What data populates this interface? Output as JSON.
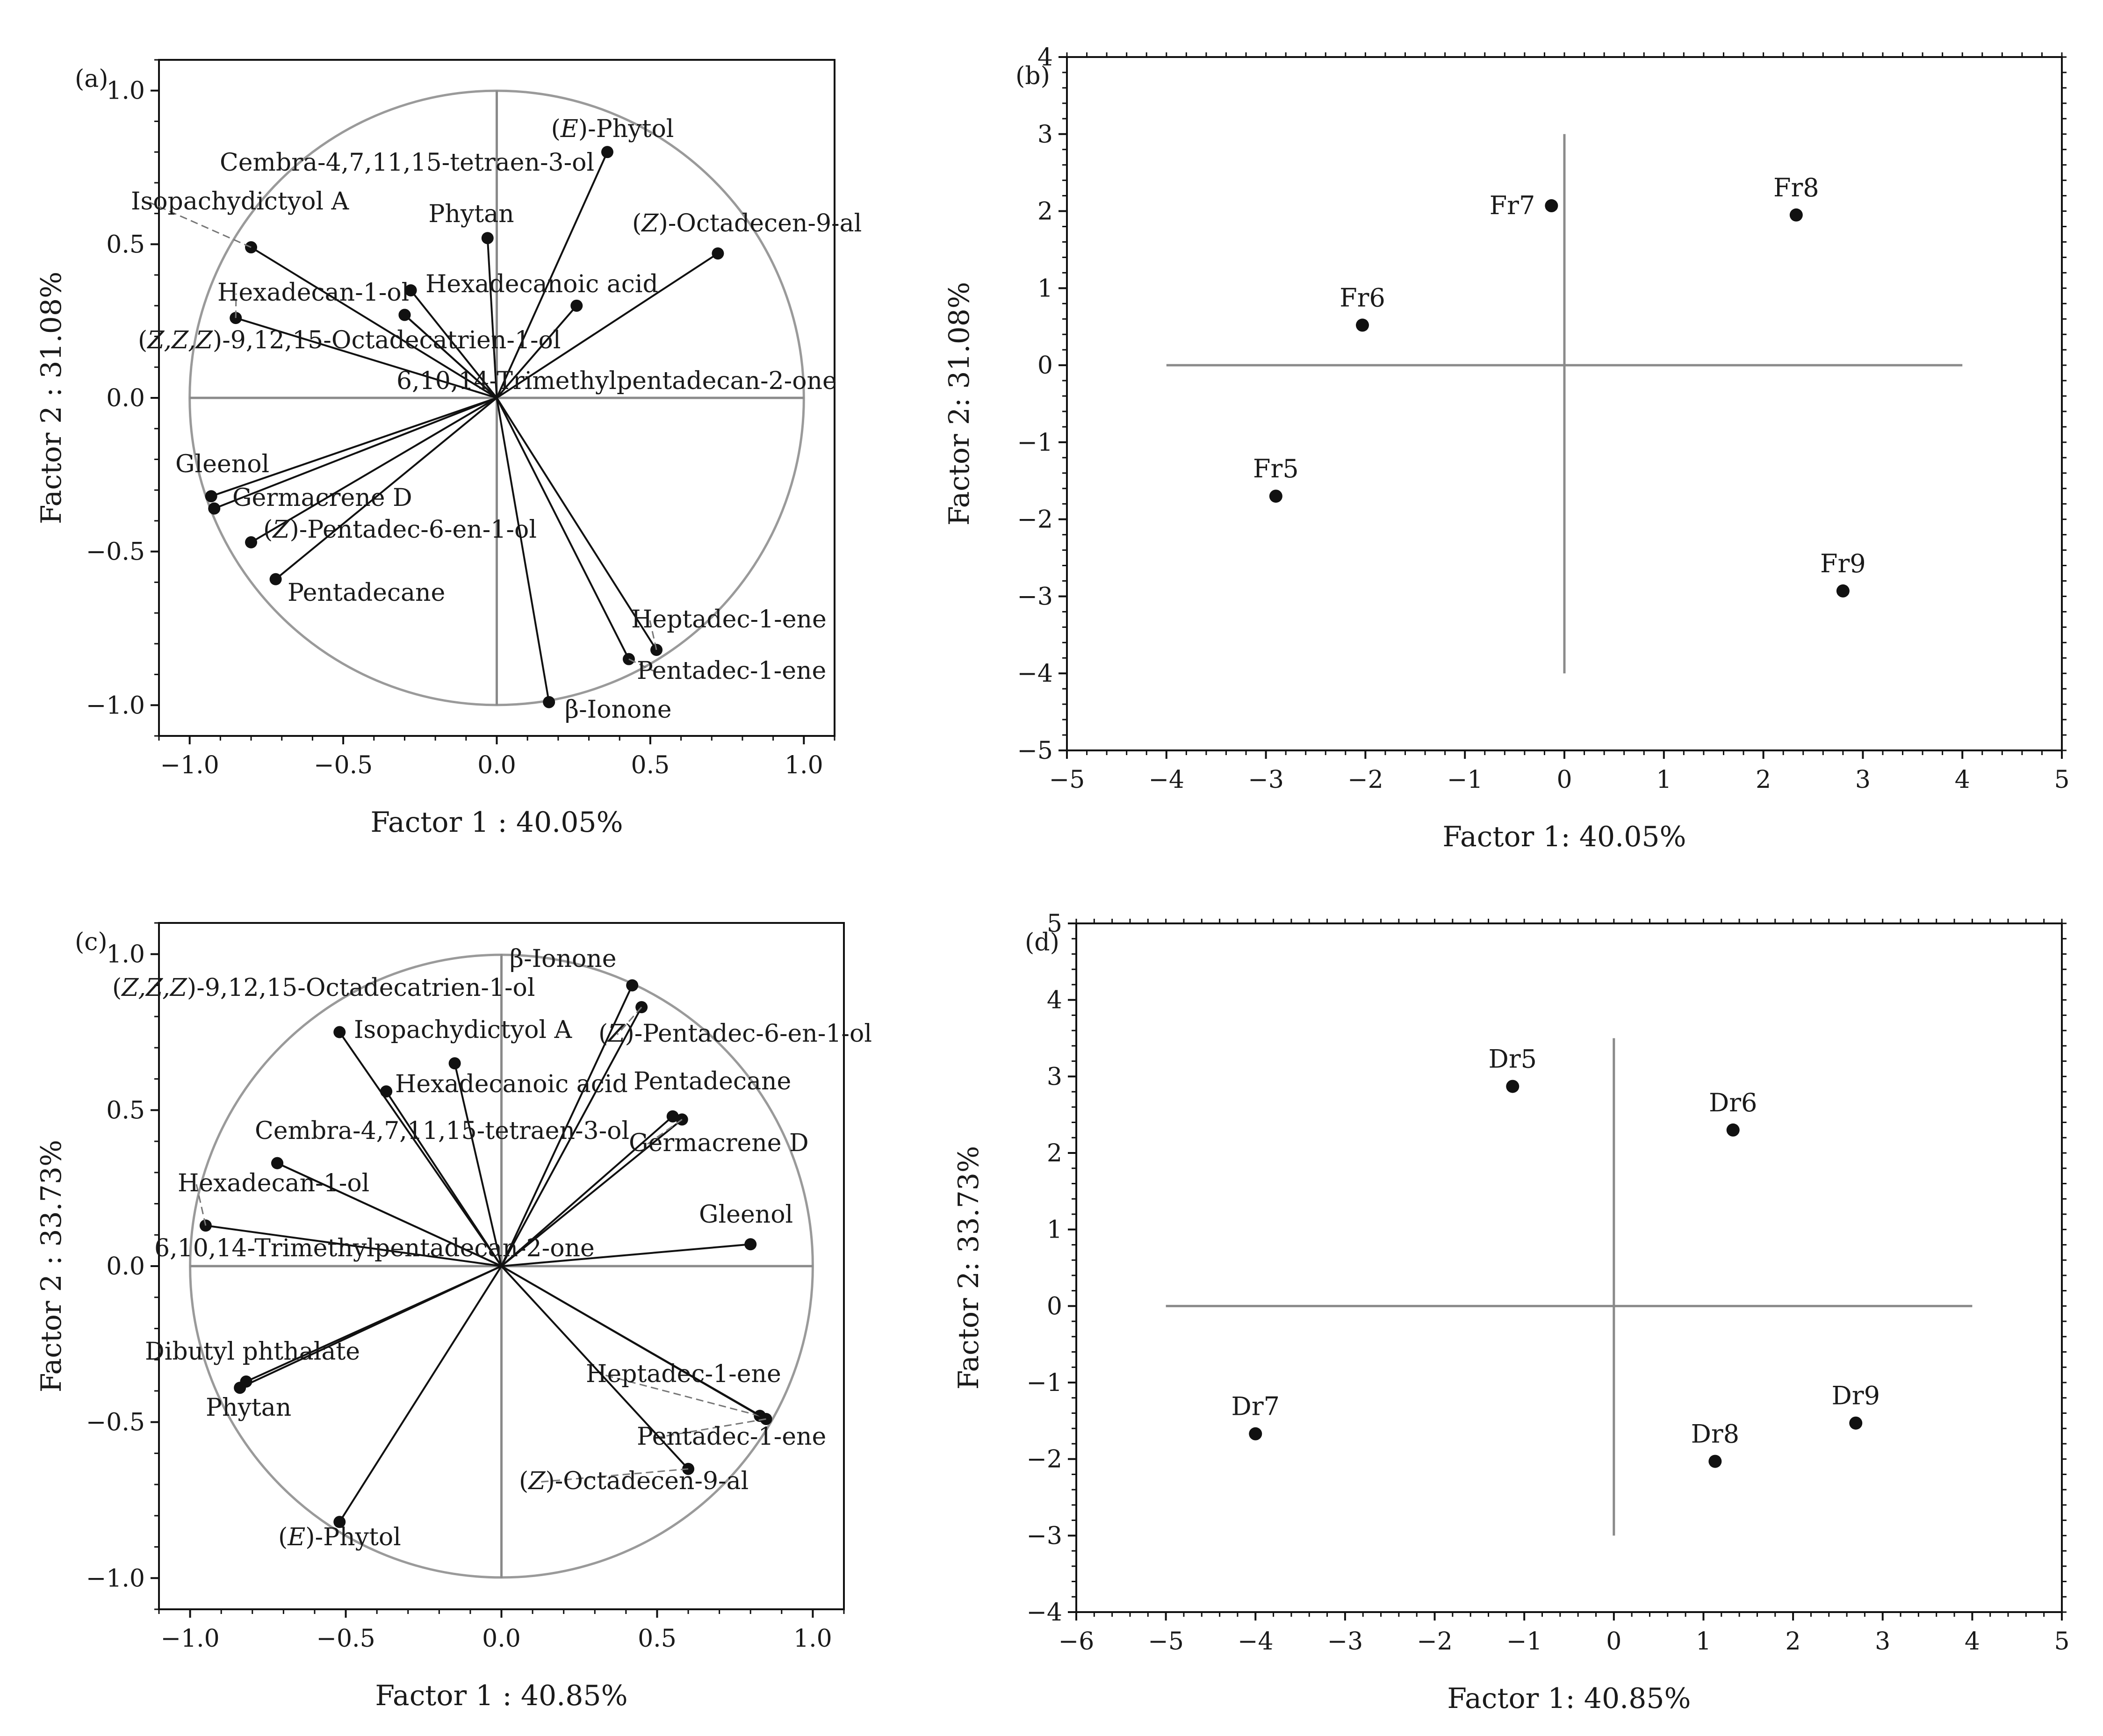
{
  "chart_data": [
    {
      "id": "a",
      "type": "loading_plot",
      "panel_label": "(a)",
      "xlabel": "Factor 1 : 40.05%",
      "ylabel": "Factor 2 : 31.08%",
      "xlim": [
        -1.1,
        1.1
      ],
      "ylim": [
        -1.1,
        1.1
      ],
      "xticks": [
        -1.0,
        -0.5,
        0.0,
        0.5,
        1.0
      ],
      "yticks": [
        -1.0,
        -0.5,
        0.0,
        0.5,
        1.0
      ],
      "xtick_labels": [
        "−1.0",
        "−0.5",
        "0.0",
        "0.5",
        "1.0"
      ],
      "ytick_labels": [
        "−1.0",
        "−0.5",
        "0.0",
        "0.5",
        "1.0"
      ],
      "unit_circle": true,
      "points": [
        {
          "name": "(E)-Phytol",
          "x": 0.36,
          "y": 0.8
        },
        {
          "name": "Cembra-4,7,11,15-tetraen-3-ol",
          "x": -0.3,
          "y": 0.27
        },
        {
          "name": "Isopachydictyol A",
          "x": -0.8,
          "y": 0.49
        },
        {
          "name": "Phytan",
          "x": -0.03,
          "y": 0.52
        },
        {
          "name": "(Z)-Octadecen-9-al",
          "x": 0.72,
          "y": 0.47
        },
        {
          "name": "Hexadecan-1-ol",
          "x": -0.85,
          "y": 0.26
        },
        {
          "name": "Hexadecanoic acid",
          "x": -0.28,
          "y": 0.35
        },
        {
          "name": "(Z,Z,Z)-9,12,15-Octadecatrien-1-ol",
          "x": 0.26,
          "y": 0.3
        },
        {
          "name": "6,10,14-Trimethylpentadecan-2-one",
          "x": -0.3,
          "y": 0.27
        },
        {
          "name": "Gleenol",
          "x": -0.93,
          "y": -0.32
        },
        {
          "name": "Germacrene D",
          "x": -0.92,
          "y": -0.36
        },
        {
          "name": "(Z)-Pentadec-6-en-1-ol",
          "x": -0.8,
          "y": -0.47
        },
        {
          "name": "Pentadecane",
          "x": -0.72,
          "y": -0.59
        },
        {
          "name": "Heptadec-1-ene",
          "x": 0.52,
          "y": -0.82
        },
        {
          "name": "Pentadec-1-ene",
          "x": 0.43,
          "y": -0.85
        },
        {
          "name": "β-Ionone",
          "x": 0.17,
          "y": -0.99
        }
      ]
    },
    {
      "id": "b",
      "type": "scatter",
      "panel_label": "(b)",
      "xlabel": "Factor 1: 40.05%",
      "ylabel": "Factor 2: 31.08%",
      "xlim": [
        -5,
        5
      ],
      "ylim": [
        -5,
        4
      ],
      "xticks": [
        -5,
        -4,
        -3,
        -2,
        -1,
        0,
        1,
        2,
        3,
        4,
        5
      ],
      "yticks": [
        -5,
        -4,
        -3,
        -2,
        -1,
        0,
        1,
        2,
        3,
        4
      ],
      "xtick_labels": [
        "−5",
        "−4",
        "−3",
        "−2",
        "−1",
        "0",
        "1",
        "2",
        "3",
        "4",
        "5"
      ],
      "ytick_labels": [
        "−5",
        "−4",
        "−3",
        "−2",
        "−1",
        "0",
        "1",
        "2",
        "3",
        "4"
      ],
      "cross_x": [
        -4,
        4
      ],
      "cross_y": [
        -4,
        3
      ],
      "points": [
        {
          "name": "Fr5",
          "x": -2.9,
          "y": -1.7
        },
        {
          "name": "Fr6",
          "x": -2.03,
          "y": 0.52
        },
        {
          "name": "Fr7",
          "x": -0.13,
          "y": 2.07
        },
        {
          "name": "Fr8",
          "x": 2.33,
          "y": 1.95
        },
        {
          "name": "Fr9",
          "x": 2.8,
          "y": -2.93
        }
      ]
    },
    {
      "id": "c",
      "type": "loading_plot",
      "panel_label": "(c)",
      "xlabel": "Factor 1 : 40.85%",
      "ylabel": "Factor 2 : 33.73%",
      "xlim": [
        -1.1,
        1.1
      ],
      "ylim": [
        -1.1,
        1.1
      ],
      "xticks": [
        -1.0,
        -0.5,
        0.0,
        0.5,
        1.0
      ],
      "yticks": [
        -1.0,
        -0.5,
        0.0,
        0.5,
        1.0
      ],
      "xtick_labels": [
        "−1.0",
        "−0.5",
        "0.0",
        "0.5",
        "1.0"
      ],
      "ytick_labels": [
        "−1.0",
        "−0.5",
        "0.0",
        "0.5",
        "1.0"
      ],
      "unit_circle": true,
      "points": [
        {
          "name": "β-Ionone",
          "x": 0.42,
          "y": 0.9
        },
        {
          "name": "(Z,Z,Z)-9,12,15-Octadecatrien-1-ol",
          "x": -0.52,
          "y": 0.75
        },
        {
          "name": "Isopachydictyol A",
          "x": -0.15,
          "y": 0.65
        },
        {
          "name": "(Z)-Pentadec-6-en-1-ol",
          "x": 0.45,
          "y": 0.83
        },
        {
          "name": "Hexadecanoic acid",
          "x": -0.37,
          "y": 0.56
        },
        {
          "name": "Pentadecane",
          "x": 0.55,
          "y": 0.48
        },
        {
          "name": "Cembra-4,7,11,15-tetraen-3-ol",
          "x": -0.72,
          "y": 0.33
        },
        {
          "name": "Germacrene D",
          "x": 0.58,
          "y": 0.47
        },
        {
          "name": "Hexadecan-1-ol",
          "x": -0.95,
          "y": 0.13
        },
        {
          "name": "6,10,14-Trimethylpentadecan-2-one",
          "x": -0.72,
          "y": 0.33
        },
        {
          "name": "Gleenol",
          "x": 0.8,
          "y": 0.07
        },
        {
          "name": "Dibutyl phthalate",
          "x": -0.82,
          "y": -0.37
        },
        {
          "name": "Phytan",
          "x": -0.84,
          "y": -0.39
        },
        {
          "name": "Heptadec-1-ene",
          "x": 0.83,
          "y": -0.48
        },
        {
          "name": "Pentadec-1-ene",
          "x": 0.85,
          "y": -0.49
        },
        {
          "name": "(Z)-Octadecen-9-al",
          "x": 0.6,
          "y": -0.65
        },
        {
          "name": "(E)-Phytol",
          "x": -0.52,
          "y": -0.82
        }
      ]
    },
    {
      "id": "d",
      "type": "scatter",
      "panel_label": "(d)",
      "xlabel": "Factor 1: 40.85%",
      "ylabel": "Factor 2: 33.73%",
      "xlim": [
        -6,
        5
      ],
      "ylim": [
        -4,
        5
      ],
      "xticks": [
        -6,
        -5,
        -4,
        -3,
        -2,
        -1,
        0,
        1,
        2,
        3,
        4,
        5
      ],
      "yticks": [
        -4,
        -3,
        -2,
        -1,
        0,
        1,
        2,
        3,
        4,
        5
      ],
      "xtick_labels": [
        "−6",
        "−5",
        "−4",
        "−3",
        "−2",
        "−1",
        "0",
        "1",
        "2",
        "3",
        "4",
        "5"
      ],
      "ytick_labels": [
        "−4",
        "−3",
        "−2",
        "−1",
        "0",
        "1",
        "2",
        "3",
        "4",
        "5"
      ],
      "cross_x": [
        -5,
        4
      ],
      "cross_y": [
        -3,
        3.5
      ],
      "points": [
        {
          "name": "Dr5",
          "x": -1.13,
          "y": 2.87
        },
        {
          "name": "Dr6",
          "x": 1.33,
          "y": 2.3
        },
        {
          "name": "Dr7",
          "x": -4.0,
          "y": -1.67
        },
        {
          "name": "Dr8",
          "x": 1.13,
          "y": -2.03
        },
        {
          "name": "Dr9",
          "x": 2.7,
          "y": -1.53
        }
      ]
    }
  ]
}
